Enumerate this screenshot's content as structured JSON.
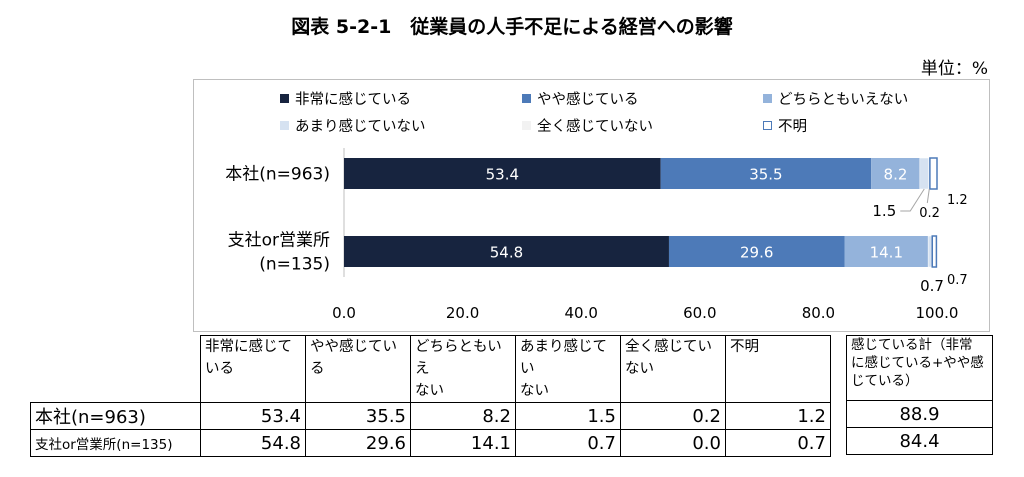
{
  "title": "図表 5-2-1　従業員の人手不足による経営への影響",
  "unit": "単位：%",
  "colors": {
    "s1": "#17243f",
    "s2": "#4d7ab8",
    "s3": "#94b3db",
    "s4": "#d6e2f1",
    "s5": "#f2f2f2",
    "s6": "#ffffff",
    "s6_border": "#4d7ab8"
  },
  "chart_data": {
    "type": "bar",
    "orientation": "horizontal",
    "stacked": true,
    "categories": [
      "本社(n=963)",
      "支社or営業所(n=135)"
    ],
    "category_lines": [
      [
        "本社(n=963)"
      ],
      [
        "支社or営業所",
        "(n=135)"
      ]
    ],
    "series": [
      {
        "name": "非常に感じている",
        "values": [
          53.4,
          54.8
        ]
      },
      {
        "name": "やや感じている",
        "values": [
          35.5,
          29.6
        ]
      },
      {
        "name": "どちらともいえない",
        "values": [
          8.2,
          14.1
        ]
      },
      {
        "name": "あまり感じていない",
        "values": [
          1.5,
          0.7
        ]
      },
      {
        "name": "全く感じていない",
        "values": [
          0.2,
          0.0
        ]
      },
      {
        "name": "不明",
        "values": [
          1.2,
          0.7
        ]
      }
    ],
    "xlim": [
      0,
      100
    ],
    "xticks": [
      "0.0",
      "20.0",
      "40.0",
      "60.0",
      "80.0",
      "100.0"
    ],
    "grid": false,
    "legend": "top",
    "bar_labels": [
      [
        "53.4",
        "35.5",
        "8.2"
      ],
      [
        "54.8",
        "29.6",
        "14.1"
      ]
    ],
    "outside_labels": [
      {
        "text": "1.5"
      },
      {
        "text": "0.2"
      },
      {
        "text": "1.2"
      },
      {
        "text": "0.7"
      },
      {
        "text": "0.7"
      }
    ]
  },
  "table": {
    "headers": [
      "非常に感じている",
      "やや感じている",
      "どちらともいえない",
      "あまり感じていない",
      "全く感じていない",
      "不明"
    ],
    "header_lines": [
      [
        "非常に感じて",
        "いる"
      ],
      [
        "やや感じてい",
        "る"
      ],
      [
        "どちらともいえ",
        "ない"
      ],
      [
        "あまり感じてい",
        "ない"
      ],
      [
        "全く感じてい",
        "ない"
      ],
      [
        "不明"
      ]
    ],
    "extra_header_lines": [
      "感じている計（非常",
      "に感じている+やや感",
      "じている）"
    ],
    "rows": [
      {
        "label": "本社(n=963)",
        "values": [
          "53.4",
          "35.5",
          "8.2",
          "1.5",
          "0.2",
          "1.2"
        ],
        "total": "88.9"
      },
      {
        "label": "支社or営業所(n=135)",
        "values": [
          "54.8",
          "29.6",
          "14.1",
          "0.7",
          "0.0",
          "0.7"
        ],
        "total": "84.4"
      }
    ]
  }
}
